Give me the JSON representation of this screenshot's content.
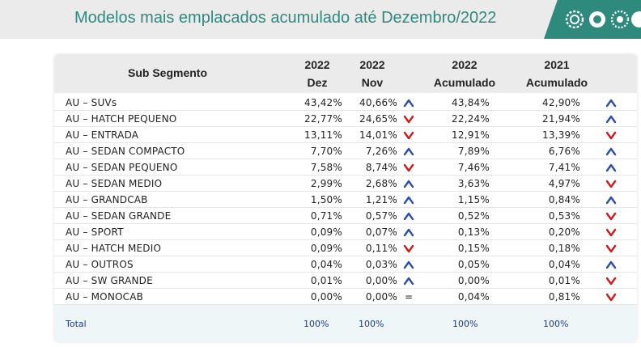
{
  "header": {
    "title": "Modelos mais emplacados acumulado até Dezembro/2022"
  },
  "table": {
    "columns": {
      "segment": "Sub Segmento",
      "dez_year": "2022",
      "dez_label": "Dez",
      "nov_year": "2022",
      "nov_label": "Nov",
      "acc22_year": "2022",
      "acc22_label": "Acumulado",
      "acc21_year": "2021",
      "acc21_label": "Acumulado"
    },
    "rows": [
      {
        "segment": "AU – SUVs",
        "dez": "43,42%",
        "nov": "40,66%",
        "trend1": "up",
        "acc22": "43,84%",
        "acc21": "42,90%",
        "trend2": "up"
      },
      {
        "segment": "AU – HATCH PEQUENO",
        "dez": "22,77%",
        "nov": "24,65%",
        "trend1": "down",
        "acc22": "22,24%",
        "acc21": "21,94%",
        "trend2": "up"
      },
      {
        "segment": "AU – ENTRADA",
        "dez": "13,11%",
        "nov": "14,01%",
        "trend1": "down",
        "acc22": "12,91%",
        "acc21": "13,39%",
        "trend2": "down"
      },
      {
        "segment": "AU – SEDAN COMPACTO",
        "dez": "7,70%",
        "nov": "7,26%",
        "trend1": "up",
        "acc22": "7,89%",
        "acc21": "6,76%",
        "trend2": "up"
      },
      {
        "segment": "AU – SEDAN PEQUENO",
        "dez": "7,58%",
        "nov": "8,74%",
        "trend1": "down",
        "acc22": "7,46%",
        "acc21": "7,41%",
        "trend2": "up"
      },
      {
        "segment": "AU – SEDAN MEDIO",
        "dez": "2,99%",
        "nov": "2,68%",
        "trend1": "up",
        "acc22": "3,63%",
        "acc21": "4,97%",
        "trend2": "down"
      },
      {
        "segment": "AU – GRANDCAB",
        "dez": "1,50%",
        "nov": "1,21%",
        "trend1": "up",
        "acc22": "1,15%",
        "acc21": "0,84%",
        "trend2": "up"
      },
      {
        "segment": "AU – SEDAN GRANDE",
        "dez": "0,71%",
        "nov": "0,57%",
        "trend1": "up",
        "acc22": "0,52%",
        "acc21": "0,53%",
        "trend2": "down"
      },
      {
        "segment": "AU – SPORT",
        "dez": "0,09%",
        "nov": "0,07%",
        "trend1": "up",
        "acc22": "0,13%",
        "acc21": "0,20%",
        "trend2": "down"
      },
      {
        "segment": "AU – HATCH MEDIO",
        "dez": "0,09%",
        "nov": "0,11%",
        "trend1": "down",
        "acc22": "0,15%",
        "acc21": "0,18%",
        "trend2": "down"
      },
      {
        "segment": "AU – OUTROS",
        "dez": "0,04%",
        "nov": "0,03%",
        "trend1": "up",
        "acc22": "0,05%",
        "acc21": "0,04%",
        "trend2": "up"
      },
      {
        "segment": "AU – SW GRANDE",
        "dez": "0,01%",
        "nov": "0,00%",
        "trend1": "up",
        "acc22": "0,00%",
        "acc21": "0,01%",
        "trend2": "down"
      },
      {
        "segment": "AU – MONOCAB",
        "dez": "0,00%",
        "nov": "0,00%",
        "trend1": "equal",
        "acc22": "0,04%",
        "acc21": "0,81%",
        "trend2": "down"
      }
    ],
    "total": {
      "label": "Total",
      "dez": "100%",
      "nov": "100%",
      "acc22": "100%",
      "acc21": "100%"
    },
    "equal_symbol": "="
  },
  "colors": {
    "up": "#2a4fb0",
    "down": "#d11a1a",
    "accent": "#2f8a7e"
  }
}
